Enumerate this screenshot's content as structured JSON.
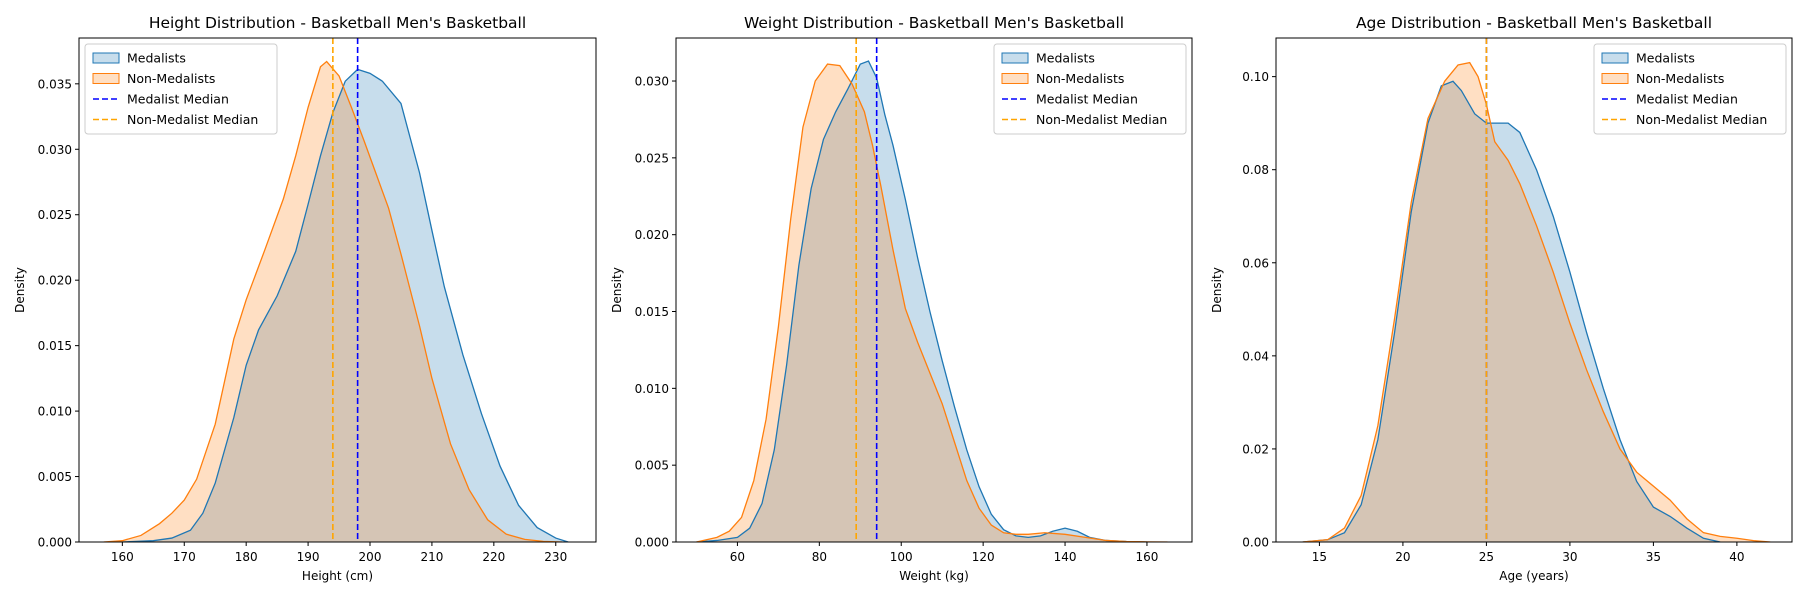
{
  "colors": {
    "medalists": "#1f77b4",
    "non_medalists": "#ff7f0e",
    "medalist_median": "#0000ff",
    "non_medalist_median": "#ffa500"
  },
  "chart_data": [
    {
      "type": "area",
      "title": "Height Distribution - Basketball Men's Basketball",
      "xlabel": "Height (cm)",
      "ylabel": "Density",
      "xlim": [
        153,
        236.5
      ],
      "ylim": [
        0,
        0.0385
      ],
      "xticks": [
        160,
        170,
        180,
        190,
        200,
        210,
        220,
        230
      ],
      "yticks": [
        0.0,
        0.005,
        0.01,
        0.015,
        0.02,
        0.025,
        0.03,
        0.035
      ],
      "ytick_decimals": 3,
      "legend": "top-left",
      "series": [
        {
          "name": "Medalists",
          "x": [
            160,
            165,
            168,
            171,
            173,
            175,
            178,
            180,
            182,
            185,
            188,
            190,
            192,
            194,
            196,
            198,
            200,
            202,
            205,
            208,
            210,
            212,
            215,
            218,
            221,
            224,
            227,
            230,
            232
          ],
          "y": [
            0,
            0.0001,
            0.0003,
            0.0009,
            0.0022,
            0.0045,
            0.0095,
            0.0135,
            0.0162,
            0.0188,
            0.0222,
            0.0258,
            0.0295,
            0.0328,
            0.0352,
            0.0361,
            0.0358,
            0.0352,
            0.0335,
            0.0282,
            0.0238,
            0.0195,
            0.0143,
            0.0098,
            0.0058,
            0.0028,
            0.0011,
            0.0003,
            0
          ]
        },
        {
          "name": "Non-Medalists",
          "x": [
            157,
            160,
            163,
            166,
            168,
            170,
            172,
            175,
            178,
            180,
            183,
            186,
            188,
            190,
            192,
            193,
            195,
            197,
            199,
            201,
            203,
            205,
            208,
            210,
            213,
            216,
            219,
            222,
            225,
            228,
            231
          ],
          "y": [
            0,
            0.0001,
            0.0005,
            0.0014,
            0.0022,
            0.0032,
            0.0048,
            0.009,
            0.0155,
            0.0185,
            0.0223,
            0.0262,
            0.0295,
            0.0332,
            0.0363,
            0.0367,
            0.0356,
            0.0332,
            0.0307,
            0.0281,
            0.0255,
            0.022,
            0.0165,
            0.0125,
            0.0075,
            0.004,
            0.0017,
            0.0006,
            0.0002,
            5e-05,
            0
          ]
        }
      ],
      "medians": [
        {
          "name": "Medalist Median",
          "x": 198
        },
        {
          "name": "Non-Medalist Median",
          "x": 194
        }
      ]
    },
    {
      "type": "area",
      "title": "Weight Distribution - Basketball Men's Basketball",
      "xlabel": "Weight (kg)",
      "ylabel": "Density",
      "xlim": [
        45,
        171
      ],
      "ylim": [
        0,
        0.0328
      ],
      "xticks": [
        60,
        80,
        100,
        120,
        140,
        160
      ],
      "yticks": [
        0.0,
        0.005,
        0.01,
        0.015,
        0.02,
        0.025,
        0.03
      ],
      "ytick_decimals": 3,
      "legend": "top-right",
      "series": [
        {
          "name": "Medalists",
          "x": [
            50,
            55,
            60,
            63,
            66,
            69,
            72,
            75,
            78,
            81,
            84,
            87,
            90,
            92,
            94,
            96,
            98,
            101,
            104,
            107,
            110,
            113,
            116,
            119,
            122,
            125,
            128,
            131,
            134,
            137,
            140,
            143,
            146,
            150,
            155,
            160
          ],
          "y": [
            0,
            0.0001,
            0.0003,
            0.0009,
            0.0025,
            0.006,
            0.0115,
            0.018,
            0.023,
            0.0262,
            0.028,
            0.0295,
            0.0311,
            0.0313,
            0.0302,
            0.0278,
            0.0258,
            0.0223,
            0.0185,
            0.015,
            0.0118,
            0.0088,
            0.006,
            0.0036,
            0.0018,
            0.0008,
            0.0004,
            0.0003,
            0.0004,
            0.0007,
            0.0009,
            0.0007,
            0.0003,
            0.0001,
            3e-05,
            0
          ]
        },
        {
          "name": "Non-Medalists",
          "x": [
            50,
            55,
            58,
            61,
            64,
            67,
            70,
            73,
            76,
            79,
            82,
            85,
            88,
            91,
            93,
            95,
            98,
            101,
            104,
            107,
            110,
            113,
            116,
            119,
            122,
            125,
            128,
            131,
            135,
            140,
            145,
            150,
            155,
            160,
            165
          ],
          "y": [
            0,
            0.0003,
            0.0007,
            0.0016,
            0.004,
            0.008,
            0.014,
            0.021,
            0.027,
            0.03,
            0.0311,
            0.031,
            0.0298,
            0.028,
            0.0258,
            0.0232,
            0.019,
            0.0152,
            0.013,
            0.011,
            0.009,
            0.0065,
            0.004,
            0.0022,
            0.0011,
            0.0006,
            0.0005,
            0.0005,
            0.0006,
            0.0005,
            0.0003,
            0.0001,
            3e-05,
            1e-05,
            0
          ]
        }
      ],
      "medians": [
        {
          "name": "Medalist Median",
          "x": 94
        },
        {
          "name": "Non-Medalist Median",
          "x": 89
        }
      ]
    },
    {
      "type": "area",
      "title": "Age Distribution - Basketball Men's Basketball",
      "xlabel": "Age (years)",
      "ylabel": "Density",
      "xlim": [
        12.4,
        43.3
      ],
      "ylim": [
        0,
        0.1083
      ],
      "xticks": [
        15,
        20,
        25,
        30,
        35,
        40
      ],
      "yticks": [
        0.0,
        0.02,
        0.04,
        0.06,
        0.08,
        0.1
      ],
      "ytick_decimals": 2,
      "legend": "top-right",
      "series": [
        {
          "name": "Medalists",
          "x": [
            14,
            15.5,
            16.5,
            17.5,
            18.5,
            19.5,
            20.5,
            21.5,
            22.3,
            23,
            23.5,
            24.3,
            25,
            25.5,
            26.3,
            27,
            28,
            29,
            30,
            31,
            32,
            33,
            34,
            35,
            36,
            37,
            38,
            39
          ],
          "y": [
            0,
            0.0005,
            0.002,
            0.008,
            0.022,
            0.045,
            0.071,
            0.09,
            0.098,
            0.099,
            0.097,
            0.092,
            0.09,
            0.09,
            0.09,
            0.088,
            0.08,
            0.07,
            0.058,
            0.045,
            0.033,
            0.022,
            0.013,
            0.0075,
            0.0055,
            0.003,
            0.0008,
            0
          ]
        },
        {
          "name": "Non-Medalists",
          "x": [
            14,
            15.5,
            16.5,
            17.5,
            18.5,
            19.5,
            20.5,
            21.5,
            22.5,
            23.3,
            24,
            24.5,
            25,
            25.5,
            26.3,
            27,
            28,
            29,
            30,
            31,
            32,
            33,
            34,
            35,
            36,
            37,
            38,
            39,
            40,
            41,
            42
          ],
          "y": [
            0,
            0.0005,
            0.003,
            0.01,
            0.025,
            0.048,
            0.073,
            0.091,
            0.099,
            0.1025,
            0.103,
            0.1,
            0.094,
            0.086,
            0.082,
            0.077,
            0.068,
            0.058,
            0.047,
            0.037,
            0.028,
            0.02,
            0.015,
            0.012,
            0.009,
            0.005,
            0.002,
            0.0012,
            0.0008,
            0.0003,
            0
          ]
        }
      ],
      "medians": [
        {
          "name": "Medalist Median",
          "x": 25
        },
        {
          "name": "Non-Medalist Median",
          "x": 25
        }
      ]
    }
  ]
}
